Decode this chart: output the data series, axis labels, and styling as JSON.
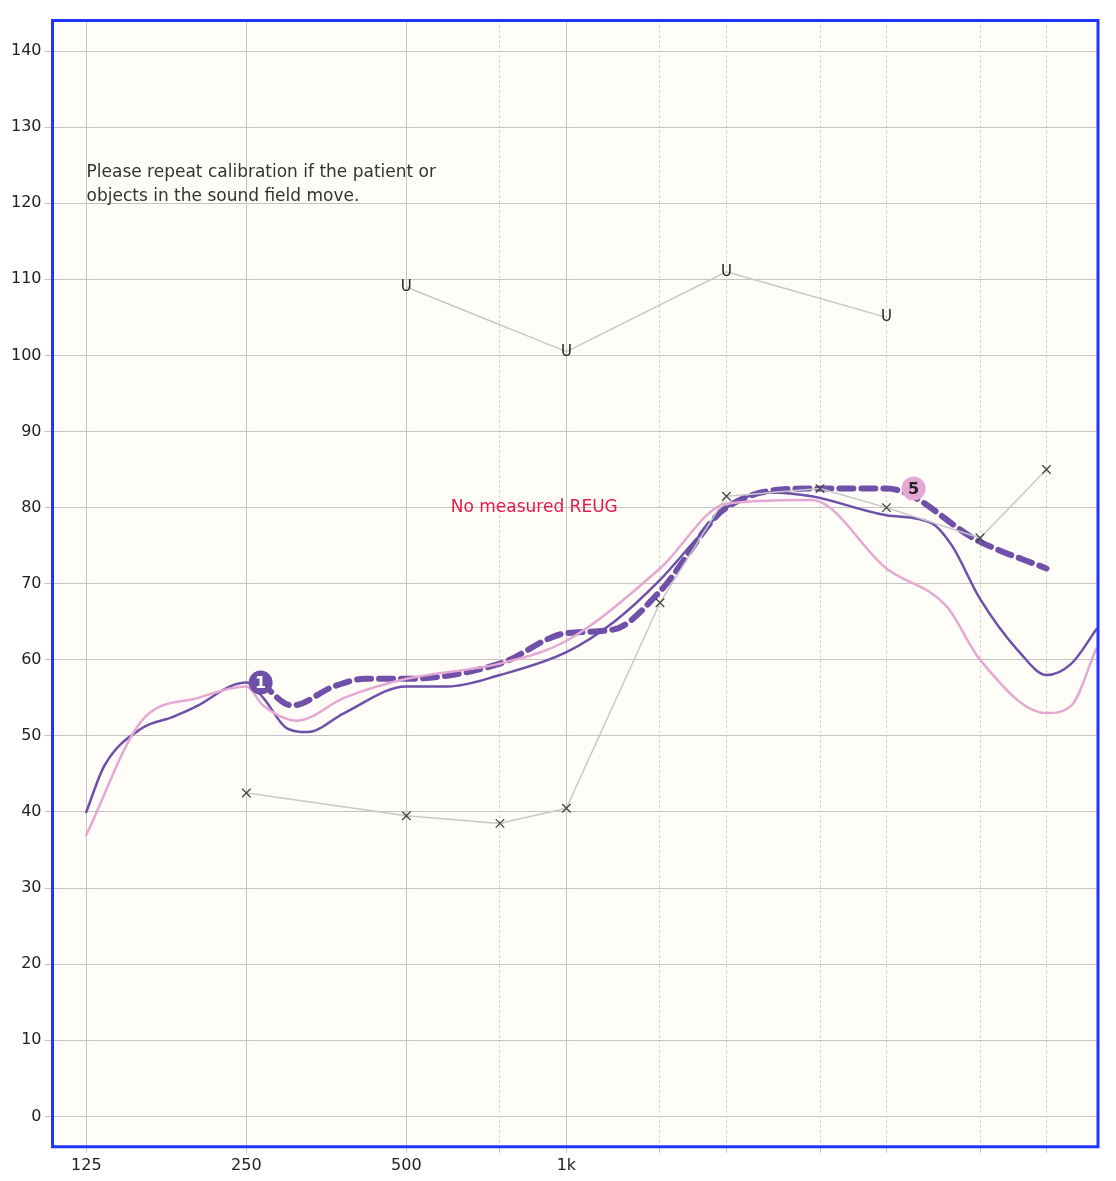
{
  "chart_data": {
    "type": "line",
    "annotations": [
      "Please repeat calibration if the patient or\nobjects in the sound field move.",
      "No measured REUG",
      {
        "text": "1",
        "x": 266,
        "y": 57
      },
      {
        "text": "5",
        "x": 4500,
        "y": 82.5
      }
    ],
    "log": "x",
    "grid": true,
    "legend": false,
    "xlim": [
      108,
      10000
    ],
    "ylim": [
      -4,
      144
    ],
    "xticks": [
      125,
      250,
      500,
      {
        "value": 750,
        "label": null
      },
      {
        "value": 1000,
        "label": "1k"
      },
      {
        "value": 1500,
        "label": null
      },
      {
        "value": 2000,
        "label": null
      },
      {
        "value": 3000,
        "label": null
      },
      {
        "value": 4000,
        "label": null
      },
      {
        "value": 6000,
        "label": null
      },
      {
        "value": 8000,
        "label": null
      }
    ],
    "yticks": [
      0,
      10,
      20,
      30,
      40,
      50,
      60,
      70,
      80,
      90,
      100,
      110,
      120,
      130,
      140
    ],
    "series": [
      {
        "color": "#c8c8c8",
        "marker": "none",
        "x": [
          500,
          1000,
          2000,
          4000
        ],
        "values": [
          109,
          100.5,
          111,
          105
        ],
        "value_labels": [
          "U",
          "U",
          "U",
          "U"
        ]
      },
      {
        "color": "#c8c8c8",
        "marker": "cross",
        "x": [
          250,
          500,
          750,
          1000,
          1500,
          2000,
          3000,
          4000,
          6000,
          8000
        ],
        "values": [
          42.5,
          39.5,
          38.5,
          40.5,
          67.5,
          81.5,
          82.5,
          80,
          76,
          85
        ]
      },
      {
        "color": "#e4a8d2",
        "marker": "none",
        "x": [
          125,
          159,
          203,
          250,
          269,
          312,
          382,
          500,
          750,
          1000,
          1500,
          2000,
          2893,
          4000,
          5194,
          6000,
          8000,
          8912,
          9930
        ],
        "values": [
          37,
          52,
          55,
          56.5,
          54,
          52,
          55,
          57.5,
          59.5,
          62.5,
          72,
          80.5,
          81,
          72,
          67,
          60,
          53,
          54,
          61.5
        ]
      },
      {
        "color": "#6e50a8",
        "marker": "none",
        "x": [
          125,
          135,
          159,
          182,
          203,
          233,
          250,
          269,
          298,
          326,
          382,
          500,
          599,
          750,
          1000,
          1230,
          1500,
          1763,
          2000,
          2416,
          2893,
          4000,
          4853,
          5312,
          6000,
          7116,
          8000,
          8912,
          9930
        ],
        "values": [
          40,
          46,
          51,
          52.5,
          54,
          56.5,
          57,
          55,
          51,
          50.5,
          53,
          56.5,
          56.5,
          58,
          61,
          65,
          70.5,
          76,
          80,
          82,
          81.5,
          79,
          78,
          75,
          68,
          61,
          58,
          59.5,
          64
        ]
      },
      {
        "color": "#7050a8",
        "marker": "none",
        "line_style": "dashed",
        "x": [
          266,
          305,
          365,
          418,
          500,
          750,
          1000,
          1230,
          1500,
          2000,
          2893,
          4000,
          6000,
          8000
        ],
        "values": [
          57,
          54,
          56.5,
          57.5,
          57.5,
          59.5,
          63.5,
          64,
          69,
          80,
          82.5,
          82.5,
          75.5,
          72
        ]
      }
    ]
  }
}
